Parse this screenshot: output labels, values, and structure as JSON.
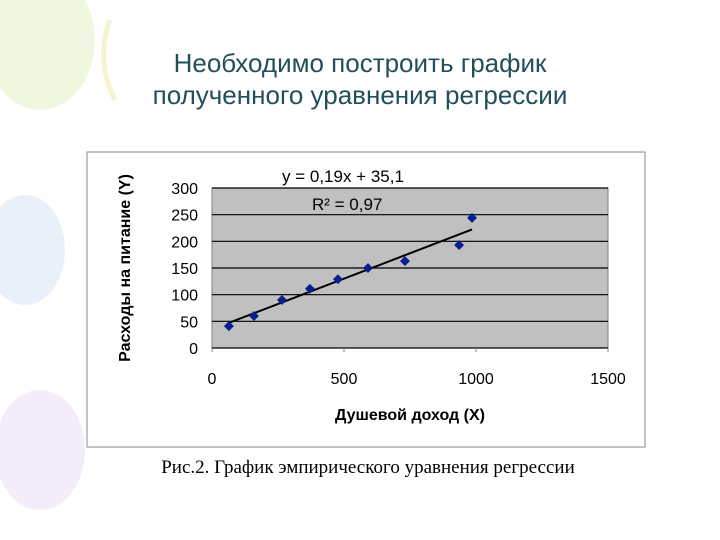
{
  "slide_title": [
    "Необходимо построить график",
    "полученного уравнения регрессии"
  ],
  "caption": "Рис.2. График эмпирического уравнения регрессии",
  "chart_data": {
    "type": "scatter",
    "x_label": "Душевой доход (X)",
    "y_label": "Расходы на питание (Y)",
    "equation_label": "y = 0,19x + 35,1",
    "r2_label": "R² = 0,97",
    "trendline": {
      "slope": 0.19,
      "intercept": 35.1,
      "color": "#000000"
    },
    "x": [
      64,
      159,
      265,
      371,
      477,
      591,
      731,
      936,
      985
    ],
    "values": [
      41,
      60,
      90,
      111,
      129,
      150,
      163,
      193,
      244
    ],
    "color": "#0a1e8c",
    "xlim": [
      0,
      1500
    ],
    "xticks": [
      0,
      500,
      1000,
      1500
    ],
    "ylim": [
      0,
      300
    ],
    "yticks": [
      0,
      50,
      100,
      150,
      200,
      250,
      300
    ],
    "grid": true,
    "plot_background": "#c0c0c0"
  }
}
